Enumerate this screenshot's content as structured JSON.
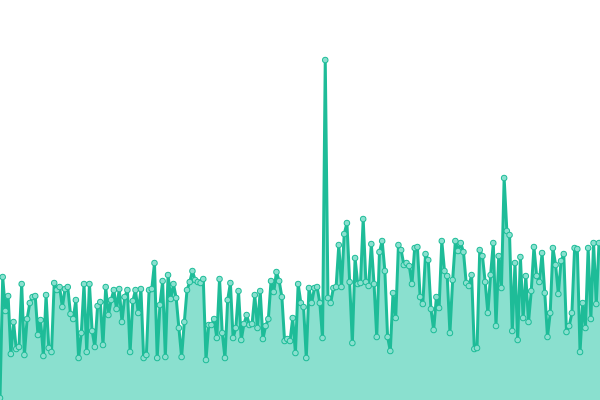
{
  "chart_data": {
    "type": "area",
    "title": "",
    "xlabel": "",
    "ylabel": "",
    "ylim": [
      0,
      400
    ],
    "grid": false,
    "legend": "none",
    "markers": true,
    "colors": {
      "line": "#1ebc98",
      "fill": "#8ae0cf",
      "marker_fill": "#8ae0cf",
      "marker_stroke": "#1ebc98"
    },
    "series": [
      {
        "values": [
          2,
          123,
          89,
          104,
          46,
          78,
          51,
          53,
          116,
          45,
          81,
          97,
          103,
          104,
          65,
          80,
          44,
          105,
          52,
          48,
          117,
          110,
          113,
          93,
          111,
          113,
          86,
          81,
          100,
          42,
          67,
          116,
          48,
          116,
          69,
          53,
          94,
          98,
          55,
          113,
          85,
          100,
          110,
          91,
          111,
          78,
          103,
          110,
          48,
          99,
          110,
          87,
          111,
          42,
          45,
          110,
          111,
          137,
          42,
          95,
          119,
          43,
          125,
          101,
          116,
          102,
          72,
          43,
          78,
          110,
          118,
          129,
          120,
          118,
          117,
          121,
          40,
          75,
          75,
          81,
          62,
          121,
          67,
          42,
          100,
          117,
          62,
          72,
          109,
          60,
          76,
          85,
          75,
          76,
          105,
          72,
          109,
          61,
          74,
          81,
          119,
          108,
          128,
          119,
          103,
          59,
          61,
          59,
          82,
          47,
          116,
          97,
          93,
          42,
          112,
          97,
          112,
          113,
          97,
          62,
          340,
          102,
          97,
          112,
          113,
          155,
          113,
          166,
          177,
          118,
          57,
          142,
          116,
          117,
          181,
          118,
          114,
          156,
          116,
          63,
          148,
          159,
          129,
          63,
          49,
          107,
          82,
          155,
          150,
          135,
          137,
          134,
          116,
          152,
          153,
          103,
          96,
          146,
          140,
          91,
          70,
          103,
          92,
          159,
          129,
          124,
          67,
          120,
          159,
          149,
          157,
          148,
          117,
          114,
          125,
          51,
          52,
          150,
          144,
          118,
          87,
          125,
          157,
          74,
          144,
          112,
          222,
          169,
          165,
          69,
          137,
          60,
          143,
          82,
          124,
          78,
          109,
          153,
          124,
          118,
          147,
          107,
          63,
          87,
          152,
          135,
          106,
          139,
          146,
          68,
          74,
          87,
          152,
          151,
          48,
          97,
          72,
          152,
          81,
          157,
          96,
          157
        ]
      }
    ]
  }
}
